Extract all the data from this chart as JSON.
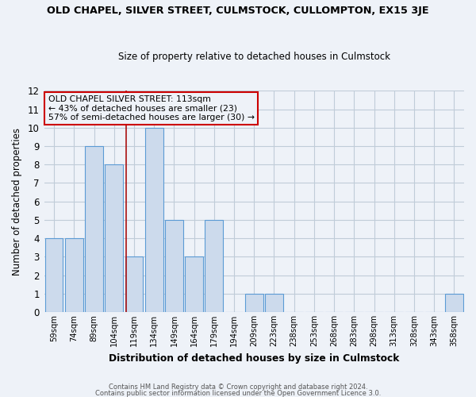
{
  "title": "OLD CHAPEL, SILVER STREET, CULMSTOCK, CULLOMPTON, EX15 3JE",
  "subtitle": "Size of property relative to detached houses in Culmstock",
  "xlabel": "Distribution of detached houses by size in Culmstock",
  "ylabel": "Number of detached properties",
  "footer_line1": "Contains HM Land Registry data © Crown copyright and database right 2024.",
  "footer_line2": "Contains public sector information licensed under the Open Government Licence 3.0.",
  "bin_labels": [
    "59sqm",
    "74sqm",
    "89sqm",
    "104sqm",
    "119sqm",
    "134sqm",
    "149sqm",
    "164sqm",
    "179sqm",
    "194sqm",
    "209sqm",
    "223sqm",
    "238sqm",
    "253sqm",
    "268sqm",
    "283sqm",
    "298sqm",
    "313sqm",
    "328sqm",
    "343sqm",
    "358sqm"
  ],
  "bar_heights": [
    4,
    4,
    9,
    8,
    3,
    10,
    5,
    3,
    5,
    0,
    1,
    1,
    0,
    0,
    0,
    0,
    0,
    0,
    0,
    0,
    1
  ],
  "bar_color": "#ccdaec",
  "bar_edge_color": "#5b9bd5",
  "ylim": [
    0,
    12
  ],
  "yticks": [
    0,
    1,
    2,
    3,
    4,
    5,
    6,
    7,
    8,
    9,
    10,
    11,
    12
  ],
  "annotation_text": "OLD CHAPEL SILVER STREET: 113sqm\n← 43% of detached houses are smaller (23)\n57% of semi-detached houses are larger (30) →",
  "vline_x": 3.73,
  "vline_color": "#aa1111",
  "bg_color": "#eef2f8",
  "grid_color": "#c0ccd8",
  "box_color": "#cc0000"
}
